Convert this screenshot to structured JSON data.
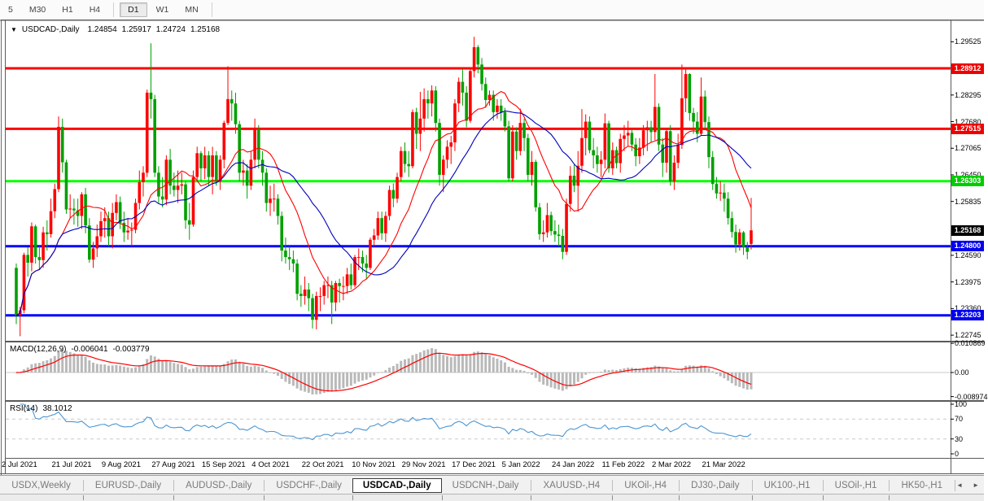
{
  "toolbar": {
    "periods": [
      "5",
      "M30",
      "H1",
      "H4",
      "D1",
      "W1",
      "MN"
    ],
    "active_period": "D1"
  },
  "chart": {
    "collapse_arrow": "▼",
    "symbol": "USDCAD-,Daily",
    "open": "1.24854",
    "high": "1.25917",
    "low": "1.24724",
    "close": "1.25168"
  },
  "price_axis": {
    "ticks": [
      "1.29525",
      "1.28295",
      "1.27680",
      "1.27065",
      "1.26450",
      "1.25835",
      "1.24590",
      "1.23975",
      "1.23360",
      "1.22745"
    ],
    "badges": [
      {
        "label": "1.28912",
        "color": "#EE0000"
      },
      {
        "label": "1.27515",
        "color": "#EE0000"
      },
      {
        "label": "1.26303",
        "color": "#00CC00"
      },
      {
        "label": "1.25168",
        "color": "#000000"
      },
      {
        "label": "1.24800",
        "color": "#0000EE"
      },
      {
        "label": "1.23203",
        "color": "#0000EE"
      }
    ]
  },
  "macd_panel": {
    "label": "MACD(12,26,9)",
    "value_main": "-0.006041",
    "value_signal": "-0.003779",
    "axis": [
      "0.010869",
      "0.00",
      "-0.008974"
    ],
    "bar_color": "#b9b9b9",
    "signal_color": "#FF0000"
  },
  "rsi_panel": {
    "label": "RSI(14)",
    "value": "38.1012",
    "axis": [
      "100",
      "70",
      "30",
      "0"
    ],
    "levels": [
      70,
      30
    ],
    "line_color": "#4d96d2"
  },
  "time_axis": {
    "labels": [
      "2 Jul 2021",
      "21 Jul 2021",
      "9 Aug 2021",
      "27 Aug 2021",
      "15 Sep 2021",
      "4 Oct 2021",
      "22 Oct 2021",
      "10 Nov 2021",
      "29 Nov 2021",
      "17 Dec 2021",
      "5 Jan 2022",
      "24 Jan 2022",
      "11 Feb 2022",
      "2 Mar 2022",
      "21 Mar 2022"
    ]
  },
  "tabs": {
    "items": [
      "USDX,Weekly",
      "EURUSD-,Daily",
      "AUDUSD-,Daily",
      "USDCHF-,Daily",
      "USDCAD-,Daily",
      "USDCNH-,Daily",
      "XAUUSD-,H4",
      "UKOil-,H4",
      "DJ30-,Daily",
      "UK100-,H1",
      "USOil-,H1",
      "HK50-,H1"
    ],
    "active": "USDCAD-,Daily",
    "scroll_left": "◄",
    "scroll_right": "►"
  },
  "chart_data": {
    "type": "candlestick",
    "symbol": "USDCAD",
    "timeframe": "Daily",
    "up_color": "#FF0000",
    "down_color": "#00A000",
    "last_price": 1.25168,
    "visible_price_range": [
      1.2259,
      1.299
    ],
    "x_tick_interval": 13,
    "sr_lines": [
      {
        "price": 1.28912,
        "color": "#FF0000"
      },
      {
        "price": 1.27515,
        "color": "#FF0000"
      },
      {
        "price": 1.26303,
        "color": "#00FF00"
      },
      {
        "price": 1.248,
        "color": "#0000FF"
      },
      {
        "price": 1.23203,
        "color": "#0000FF"
      }
    ],
    "overlays": [
      {
        "name": "ma-fast",
        "color": "#FF0000"
      },
      {
        "name": "ma-slow",
        "color": "#0000BB"
      }
    ],
    "ohlc": [
      [
        1.243,
        1.244,
        1.23,
        1.232
      ],
      [
        1.232,
        1.234,
        1.2272,
        1.2332
      ],
      [
        1.2332,
        1.2465,
        1.2325,
        1.246
      ],
      [
        1.246,
        1.2478,
        1.241,
        1.2442
      ],
      [
        1.2442,
        1.2535,
        1.2422,
        1.2526
      ],
      [
        1.2526,
        1.253,
        1.244,
        1.2455
      ],
      [
        1.2455,
        1.248,
        1.2425,
        1.2448
      ],
      [
        1.2448,
        1.2525,
        1.243,
        1.2512
      ],
      [
        1.2512,
        1.254,
        1.247,
        1.2508
      ],
      [
        1.2508,
        1.259,
        1.25,
        1.2561
      ],
      [
        1.2561,
        1.2625,
        1.2545,
        1.2612
      ],
      [
        1.2612,
        1.278,
        1.2605,
        1.2756
      ],
      [
        1.2756,
        1.2775,
        1.265,
        1.2674
      ],
      [
        1.2674,
        1.268,
        1.2555,
        1.2565
      ],
      [
        1.2565,
        1.26,
        1.2545,
        1.2567
      ],
      [
        1.2567,
        1.259,
        1.253,
        1.2563
      ],
      [
        1.2563,
        1.259,
        1.2525,
        1.255
      ],
      [
        1.255,
        1.2605,
        1.252,
        1.26
      ],
      [
        1.26,
        1.2615,
        1.251,
        1.2528
      ],
      [
        1.2528,
        1.2545,
        1.2442,
        1.2449
      ],
      [
        1.2449,
        1.249,
        1.243,
        1.2475
      ],
      [
        1.2475,
        1.253,
        1.2455,
        1.2503
      ],
      [
        1.2503,
        1.256,
        1.249,
        1.2538
      ],
      [
        1.2538,
        1.257,
        1.25,
        1.2545
      ],
      [
        1.2545,
        1.256,
        1.248,
        1.2503
      ],
      [
        1.2503,
        1.258,
        1.2475,
        1.2557
      ],
      [
        1.2557,
        1.26,
        1.254,
        1.2582
      ],
      [
        1.2582,
        1.2595,
        1.252,
        1.2534
      ],
      [
        1.2534,
        1.256,
        1.249,
        1.2512
      ],
      [
        1.2512,
        1.2545,
        1.2495,
        1.2516
      ],
      [
        1.2516,
        1.2535,
        1.248,
        1.2518
      ],
      [
        1.2518,
        1.259,
        1.251,
        1.258
      ],
      [
        1.258,
        1.2655,
        1.2565,
        1.2628
      ],
      [
        1.2628,
        1.2665,
        1.2595,
        1.265
      ],
      [
        1.265,
        1.2842,
        1.264,
        1.2835
      ],
      [
        1.2835,
        1.2949,
        1.2775,
        1.282
      ],
      [
        1.282,
        1.283,
        1.264,
        1.265
      ],
      [
        1.265,
        1.2665,
        1.258,
        1.2595
      ],
      [
        1.2595,
        1.264,
        1.257,
        1.2588
      ],
      [
        1.2588,
        1.269,
        1.2575,
        1.268
      ],
      [
        1.268,
        1.2705,
        1.26,
        1.262
      ],
      [
        1.262,
        1.265,
        1.2595,
        1.261
      ],
      [
        1.261,
        1.2655,
        1.258,
        1.262
      ],
      [
        1.262,
        1.265,
        1.26,
        1.2623
      ],
      [
        1.2623,
        1.263,
        1.252,
        1.254
      ],
      [
        1.254,
        1.258,
        1.2495,
        1.253
      ],
      [
        1.253,
        1.2655,
        1.2525,
        1.264
      ],
      [
        1.264,
        1.271,
        1.263,
        1.2695
      ],
      [
        1.2695,
        1.27,
        1.263,
        1.266
      ],
      [
        1.266,
        1.271,
        1.2635,
        1.269
      ],
      [
        1.269,
        1.27,
        1.262,
        1.264
      ],
      [
        1.264,
        1.271,
        1.26,
        1.269
      ],
      [
        1.269,
        1.27,
        1.262,
        1.263
      ],
      [
        1.263,
        1.269,
        1.261,
        1.268
      ],
      [
        1.268,
        1.277,
        1.266,
        1.2765
      ],
      [
        1.2765,
        1.2896,
        1.276,
        1.282
      ],
      [
        1.282,
        1.284,
        1.277,
        1.281
      ],
      [
        1.281,
        1.2835,
        1.274,
        1.2762
      ],
      [
        1.2762,
        1.277,
        1.263,
        1.265
      ],
      [
        1.265,
        1.268,
        1.262,
        1.2655
      ],
      [
        1.2655,
        1.267,
        1.259,
        1.262
      ],
      [
        1.262,
        1.27,
        1.261,
        1.268
      ],
      [
        1.268,
        1.2775,
        1.266,
        1.275
      ],
      [
        1.275,
        1.276,
        1.266,
        1.268
      ],
      [
        1.268,
        1.27,
        1.262,
        1.265
      ],
      [
        1.265,
        1.266,
        1.256,
        1.258
      ],
      [
        1.258,
        1.262,
        1.255,
        1.259
      ],
      [
        1.259,
        1.2625,
        1.256,
        1.259
      ],
      [
        1.259,
        1.26,
        1.253,
        1.255
      ],
      [
        1.255,
        1.256,
        1.2445,
        1.247
      ],
      [
        1.247,
        1.25,
        1.244,
        1.2455
      ],
      [
        1.2455,
        1.248,
        1.2425,
        1.245
      ],
      [
        1.245,
        1.247,
        1.242,
        1.244
      ],
      [
        1.244,
        1.245,
        1.2355,
        1.237
      ],
      [
        1.237,
        1.239,
        1.234,
        1.2365
      ],
      [
        1.2365,
        1.241,
        1.2345,
        1.238
      ],
      [
        1.238,
        1.2395,
        1.233,
        1.236
      ],
      [
        1.236,
        1.237,
        1.229,
        1.231
      ],
      [
        1.231,
        1.2375,
        1.2288,
        1.2365
      ],
      [
        1.2365,
        1.2385,
        1.233,
        1.2365
      ],
      [
        1.2365,
        1.24,
        1.2345,
        1.239
      ],
      [
        1.239,
        1.241,
        1.236,
        1.239
      ],
      [
        1.239,
        1.24,
        1.23,
        1.235
      ],
      [
        1.235,
        1.24,
        1.233,
        1.2395
      ],
      [
        1.2395,
        1.2405,
        1.235,
        1.2388
      ],
      [
        1.2388,
        1.241,
        1.2355,
        1.2388
      ],
      [
        1.2388,
        1.243,
        1.237,
        1.2415
      ],
      [
        1.2415,
        1.244,
        1.238,
        1.239
      ],
      [
        1.239,
        1.246,
        1.2385,
        1.2455
      ],
      [
        1.2455,
        1.2475,
        1.2425,
        1.2455
      ],
      [
        1.2455,
        1.247,
        1.242,
        1.244
      ],
      [
        1.244,
        1.246,
        1.2405,
        1.243
      ],
      [
        1.243,
        1.25,
        1.2425,
        1.2495
      ],
      [
        1.2495,
        1.252,
        1.248,
        1.2505
      ],
      [
        1.2505,
        1.256,
        1.2495,
        1.2545
      ],
      [
        1.2545,
        1.256,
        1.2495,
        1.251
      ],
      [
        1.251,
        1.256,
        1.249,
        1.255
      ],
      [
        1.255,
        1.262,
        1.254,
        1.261
      ],
      [
        1.261,
        1.2625,
        1.257,
        1.259
      ],
      [
        1.259,
        1.265,
        1.258,
        1.264
      ],
      [
        1.264,
        1.271,
        1.263,
        1.27
      ],
      [
        1.27,
        1.272,
        1.265,
        1.267
      ],
      [
        1.267,
        1.27,
        1.264,
        1.2665
      ],
      [
        1.2665,
        1.2796,
        1.266,
        1.279
      ],
      [
        1.279,
        1.28,
        1.2705,
        1.274
      ],
      [
        1.274,
        1.2837,
        1.27,
        1.2775
      ],
      [
        1.2775,
        1.2845,
        1.2745,
        1.282
      ],
      [
        1.282,
        1.284,
        1.2775,
        1.281
      ],
      [
        1.281,
        1.2852,
        1.278,
        1.284
      ],
      [
        1.284,
        1.285,
        1.2745,
        1.2765
      ],
      [
        1.2765,
        1.2775,
        1.262,
        1.2645
      ],
      [
        1.2645,
        1.269,
        1.2605,
        1.268
      ],
      [
        1.268,
        1.2725,
        1.266,
        1.271
      ],
      [
        1.271,
        1.2735,
        1.267,
        1.272
      ],
      [
        1.272,
        1.282,
        1.27,
        1.281
      ],
      [
        1.281,
        1.287,
        1.279,
        1.286
      ],
      [
        1.286,
        1.289,
        1.2805,
        1.2835
      ],
      [
        1.2835,
        1.285,
        1.2755,
        1.277
      ],
      [
        1.277,
        1.289,
        1.2765,
        1.2885
      ],
      [
        1.2885,
        1.2964,
        1.287,
        1.294
      ],
      [
        1.294,
        1.2945,
        1.288,
        1.29
      ],
      [
        1.29,
        1.2915,
        1.284,
        1.2855
      ],
      [
        1.2855,
        1.287,
        1.28,
        1.2818
      ],
      [
        1.2818,
        1.284,
        1.2805,
        1.283
      ],
      [
        1.283,
        1.284,
        1.277,
        1.279
      ],
      [
        1.279,
        1.282,
        1.2775,
        1.2805
      ],
      [
        1.2805,
        1.282,
        1.277,
        1.279
      ],
      [
        1.279,
        1.28,
        1.2745,
        1.2757
      ],
      [
        1.2757,
        1.277,
        1.263,
        1.2637
      ],
      [
        1.2637,
        1.276,
        1.263,
        1.2745
      ],
      [
        1.2745,
        1.2755,
        1.268,
        1.27
      ],
      [
        1.27,
        1.2798,
        1.269,
        1.2765
      ],
      [
        1.2765,
        1.2775,
        1.27,
        1.273
      ],
      [
        1.273,
        1.274,
        1.263,
        1.2645
      ],
      [
        1.2645,
        1.27,
        1.262,
        1.2675
      ],
      [
        1.2675,
        1.268,
        1.256,
        1.257
      ],
      [
        1.257,
        1.258,
        1.2495,
        1.2508
      ],
      [
        1.2508,
        1.254,
        1.249,
        1.2512
      ],
      [
        1.2512,
        1.258,
        1.25,
        1.2552
      ],
      [
        1.2552,
        1.256,
        1.2505,
        1.2515
      ],
      [
        1.2515,
        1.254,
        1.249,
        1.2507
      ],
      [
        1.2507,
        1.253,
        1.248,
        1.2504
      ],
      [
        1.2504,
        1.252,
        1.245,
        1.2467
      ],
      [
        1.2467,
        1.259,
        1.246,
        1.2578
      ],
      [
        1.2578,
        1.2665,
        1.256,
        1.2643
      ],
      [
        1.2643,
        1.267,
        1.2605,
        1.262
      ],
      [
        1.262,
        1.27,
        1.256,
        1.2666
      ],
      [
        1.2666,
        1.2797,
        1.265,
        1.273
      ],
      [
        1.273,
        1.2785,
        1.269,
        1.2768
      ],
      [
        1.2768,
        1.278,
        1.2695,
        1.2702
      ],
      [
        1.2702,
        1.273,
        1.266,
        1.269
      ],
      [
        1.269,
        1.271,
        1.265,
        1.267
      ],
      [
        1.267,
        1.27,
        1.264,
        1.268
      ],
      [
        1.268,
        1.2787,
        1.266,
        1.2764
      ],
      [
        1.2764,
        1.277,
        1.265,
        1.266
      ],
      [
        1.266,
        1.272,
        1.2645,
        1.2702
      ],
      [
        1.2702,
        1.271,
        1.266,
        1.2672
      ],
      [
        1.2672,
        1.274,
        1.265,
        1.2728
      ],
      [
        1.2728,
        1.276,
        1.27,
        1.2736
      ],
      [
        1.2736,
        1.277,
        1.271,
        1.2742
      ],
      [
        1.2742,
        1.275,
        1.27,
        1.2715
      ],
      [
        1.2715,
        1.273,
        1.2665,
        1.2688
      ],
      [
        1.2688,
        1.273,
        1.267,
        1.2708
      ],
      [
        1.2708,
        1.276,
        1.269,
        1.2748
      ],
      [
        1.2748,
        1.277,
        1.27,
        1.2755
      ],
      [
        1.2755,
        1.277,
        1.272,
        1.2744
      ],
      [
        1.2744,
        1.2878,
        1.2725,
        1.2802
      ],
      [
        1.2802,
        1.281,
        1.27,
        1.2715
      ],
      [
        1.2715,
        1.273,
        1.264,
        1.2673
      ],
      [
        1.2673,
        1.275,
        1.265,
        1.2746
      ],
      [
        1.2746,
        1.276,
        1.262,
        1.263
      ],
      [
        1.263,
        1.269,
        1.261,
        1.2673
      ],
      [
        1.2673,
        1.274,
        1.266,
        1.2714
      ],
      [
        1.2714,
        1.29,
        1.2705,
        1.2822
      ],
      [
        1.2822,
        1.289,
        1.279,
        1.2878
      ],
      [
        1.2878,
        1.288,
        1.277,
        1.2788
      ],
      [
        1.2788,
        1.28,
        1.274,
        1.2768
      ],
      [
        1.2768,
        1.279,
        1.272,
        1.274
      ],
      [
        1.274,
        1.287,
        1.2735,
        1.2826
      ],
      [
        1.2826,
        1.284,
        1.275,
        1.2767
      ],
      [
        1.2767,
        1.278,
        1.266,
        1.2686
      ],
      [
        1.2686,
        1.27,
        1.261,
        1.2624
      ],
      [
        1.2624,
        1.264,
        1.259,
        1.2602
      ],
      [
        1.2602,
        1.263,
        1.2585,
        1.2604
      ],
      [
        1.2604,
        1.2625,
        1.256,
        1.259
      ],
      [
        1.259,
        1.2605,
        1.253,
        1.2545
      ],
      [
        1.2545,
        1.256,
        1.25,
        1.2513
      ],
      [
        1.2513,
        1.253,
        1.2465,
        1.2484
      ],
      [
        1.2484,
        1.252,
        1.247,
        1.2512
      ],
      [
        1.2512,
        1.2515,
        1.246,
        1.2478
      ],
      [
        1.2478,
        1.249,
        1.245,
        1.2467
      ],
      [
        1.24854,
        1.25917,
        1.24724,
        1.25168
      ]
    ]
  }
}
